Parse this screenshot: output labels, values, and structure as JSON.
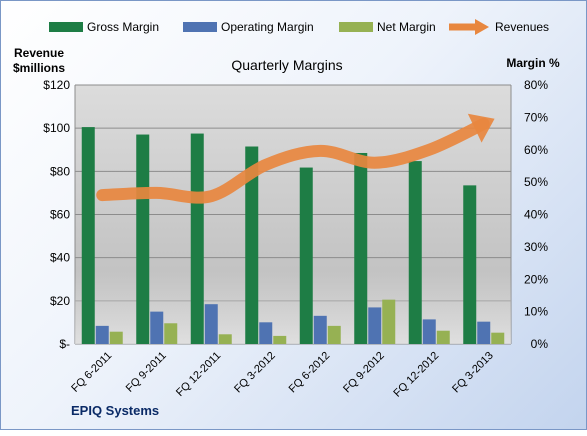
{
  "chart_data": {
    "type": "bar",
    "title": "Quarterly Margins",
    "company": "EPIQ Systems",
    "left_axis_title": [
      "Revenue",
      "$millions"
    ],
    "right_axis_title": "Margin %",
    "categories": [
      "FQ 6-2011",
      "FQ 9-2011",
      "FQ 12-2011",
      "FQ 3-2012",
      "FQ 6-2012",
      "FQ 9-2012",
      "FQ 12-2012",
      "FQ 3-2013"
    ],
    "left_ticks": [
      "$-",
      "$20",
      "$40",
      "$60",
      "$80",
      "$100",
      "$120"
    ],
    "right_ticks": [
      "0%",
      "10%",
      "20%",
      "30%",
      "40%",
      "50%",
      "60%",
      "70%",
      "80%"
    ],
    "ylim_left": [
      0,
      120
    ],
    "ylim_right": [
      0,
      80
    ],
    "legend_position": "top",
    "grid": true,
    "series": [
      {
        "name": "Gross Margin",
        "axis": "right",
        "unit": "%",
        "color": "#1e7d45",
        "values": [
          67,
          64.7,
          65,
          61,
          54.5,
          59,
          56.5,
          49
        ]
      },
      {
        "name": "Operating Margin",
        "axis": "right",
        "unit": "%",
        "color": "#4f73b2",
        "values": [
          5.6,
          10,
          12.3,
          6.7,
          8.7,
          11.3,
          7.6,
          6.9
        ]
      },
      {
        "name": "Net Margin",
        "axis": "right",
        "unit": "%",
        "color": "#96b153",
        "values": [
          3.8,
          6.4,
          3,
          2.5,
          5.6,
          13.7,
          4.1,
          3.5
        ]
      },
      {
        "name": "Revenues",
        "axis": "left",
        "unit": "$M",
        "type": "line",
        "color": "#e8873f",
        "values": [
          69,
          70,
          68.5,
          83,
          89.5,
          84,
          90,
          102
        ]
      }
    ]
  }
}
